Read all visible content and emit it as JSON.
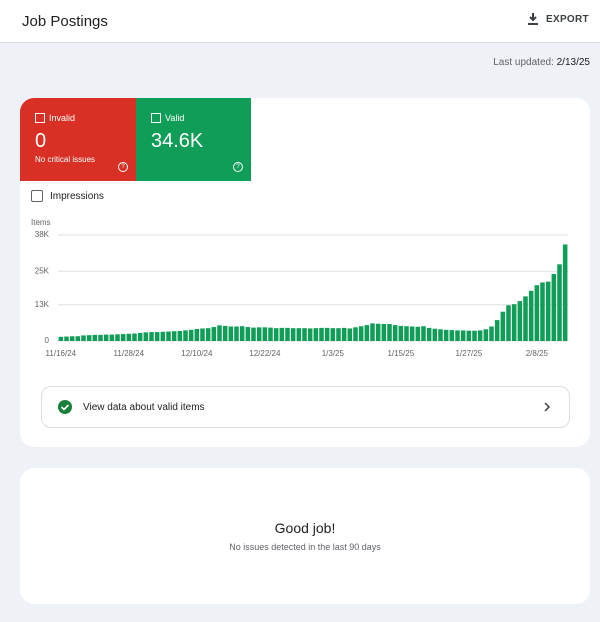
{
  "header": {
    "title": "Job Postings",
    "export": "EXPORT"
  },
  "last_updated": {
    "label": "Last updated:",
    "date": "2/13/25"
  },
  "summary": {
    "invalid": {
      "label": "Invalid",
      "count": "0",
      "note": "No critical issues"
    },
    "valid": {
      "label": "Valid",
      "count": "34.6K"
    }
  },
  "impressions_label": "Impressions",
  "chart_data": {
    "type": "bar",
    "y_axis_label": "Items",
    "categories": [
      "11/16/24",
      null,
      null,
      null,
      null,
      null,
      null,
      null,
      null,
      null,
      null,
      null,
      "11/28/24",
      null,
      null,
      null,
      null,
      null,
      null,
      null,
      null,
      null,
      null,
      null,
      "12/10/24",
      null,
      null,
      null,
      null,
      null,
      null,
      null,
      null,
      null,
      null,
      null,
      "12/22/24",
      null,
      null,
      null,
      null,
      null,
      null,
      null,
      null,
      null,
      null,
      null,
      "1/3/25",
      null,
      null,
      null,
      null,
      null,
      null,
      null,
      null,
      null,
      null,
      null,
      "1/15/25",
      null,
      null,
      null,
      null,
      null,
      null,
      null,
      null,
      null,
      null,
      null,
      "1/27/25",
      null,
      null,
      null,
      null,
      null,
      null,
      null,
      null,
      null,
      null,
      null,
      "2/8/25",
      null,
      null,
      null,
      null,
      null
    ],
    "values": [
      1500,
      1600,
      1700,
      1700,
      2000,
      2100,
      2200,
      2200,
      2300,
      2300,
      2400,
      2500,
      2600,
      2700,
      2900,
      3100,
      3200,
      3200,
      3300,
      3400,
      3500,
      3600,
      3800,
      4000,
      4300,
      4500,
      4600,
      5000,
      5600,
      5400,
      5200,
      5200,
      5300,
      5000,
      4800,
      4900,
      4900,
      4800,
      4600,
      4700,
      4700,
      4600,
      4600,
      4600,
      4500,
      4600,
      4700,
      4700,
      4600,
      4600,
      4700,
      4500,
      4900,
      5300,
      5700,
      6300,
      6200,
      6100,
      6100,
      5700,
      5400,
      5300,
      5200,
      5100,
      5300,
      4700,
      4400,
      4200,
      4000,
      3900,
      3800,
      3800,
      3700,
      3700,
      3800,
      4200,
      5200,
      7500,
      10500,
      12800,
      13200,
      14300,
      16000,
      18000,
      20000,
      21000,
      21300,
      24000,
      27500,
      34600
    ],
    "color": "#0f9d58",
    "ylim": [
      0,
      38000
    ],
    "yticks": [
      0,
      {
        "value": 13000,
        "label": "13K"
      },
      {
        "value": 25000,
        "label": "25K"
      },
      {
        "value": 38000,
        "label": "38K"
      }
    ],
    "grid": true
  },
  "link": {
    "label": "View data about valid items"
  },
  "status": {
    "title": "Good job!",
    "text": "No issues detected in the last 90 days"
  }
}
